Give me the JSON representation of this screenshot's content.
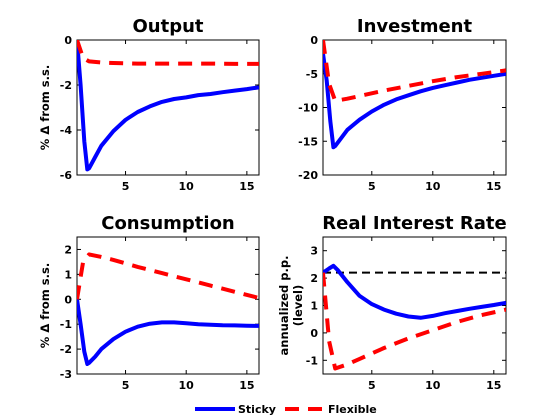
{
  "figure": {
    "legend": {
      "placement": "bottom-center",
      "entries": [
        {
          "name": "Sticky",
          "color": "#0000ff",
          "style": "solid"
        },
        {
          "name": "Flexible",
          "color": "#ff0000",
          "style": "dashed"
        }
      ]
    }
  },
  "chart_data": [
    {
      "type": "line",
      "title": "Output",
      "xlabel": "",
      "ylabel": "% Δ from s.s.",
      "xlim": [
        1,
        16
      ],
      "ylim": [
        -6,
        0
      ],
      "xticks": [
        5,
        10,
        15
      ],
      "yticks": [
        0,
        -2,
        -4,
        -6
      ],
      "grid": false,
      "series": [
        {
          "name": "Sticky",
          "color": "#0000ff",
          "style": "solid",
          "x": [
            1,
            1.3,
            1.6,
            1.85,
            2,
            2.5,
            3,
            4,
            5,
            6,
            7,
            8,
            9,
            10,
            11,
            12,
            13,
            14,
            15,
            16
          ],
          "y": [
            0,
            -2.0,
            -4.5,
            -5.75,
            -5.7,
            -5.2,
            -4.7,
            -4.05,
            -3.55,
            -3.2,
            -2.95,
            -2.75,
            -2.62,
            -2.55,
            -2.45,
            -2.4,
            -2.32,
            -2.25,
            -2.18,
            -2.1
          ]
        },
        {
          "name": "Flexible",
          "color": "#ff0000",
          "style": "dashed",
          "x": [
            1,
            1.5,
            2,
            3,
            4,
            6,
            8,
            10,
            12,
            14,
            16
          ],
          "y": [
            0,
            -0.8,
            -0.95,
            -1.0,
            -1.02,
            -1.05,
            -1.05,
            -1.05,
            -1.05,
            -1.06,
            -1.06
          ]
        }
      ]
    },
    {
      "type": "line",
      "title": "Investment",
      "xlabel": "",
      "ylabel": "",
      "xlim": [
        1,
        16
      ],
      "ylim": [
        -20,
        0
      ],
      "xticks": [
        5,
        10,
        15
      ],
      "yticks": [
        0,
        -5,
        -10,
        -15,
        -20
      ],
      "grid": false,
      "series": [
        {
          "name": "Sticky",
          "color": "#0000ff",
          "style": "solid",
          "x": [
            1,
            1.3,
            1.6,
            1.85,
            2,
            2.5,
            3,
            4,
            5,
            6,
            7,
            8,
            9,
            10,
            11,
            12,
            13,
            14,
            15,
            16
          ],
          "y": [
            -2,
            -6,
            -12,
            -15.9,
            -15.7,
            -14.5,
            -13.3,
            -11.8,
            -10.6,
            -9.6,
            -8.8,
            -8.2,
            -7.6,
            -7.1,
            -6.7,
            -6.3,
            -5.9,
            -5.6,
            -5.3,
            -5.0
          ]
        },
        {
          "name": "Flexible",
          "color": "#ff0000",
          "style": "dashed",
          "x": [
            1,
            1.5,
            2,
            3,
            4,
            6,
            8,
            10,
            12,
            14,
            16
          ],
          "y": [
            0,
            -6.5,
            -9.0,
            -8.7,
            -8.3,
            -7.5,
            -6.8,
            -6.1,
            -5.5,
            -5.0,
            -4.5
          ]
        }
      ]
    },
    {
      "type": "line",
      "title": "Consumption",
      "xlabel": "",
      "ylabel": "% Δ from s.s.",
      "xlim": [
        1,
        16
      ],
      "ylim": [
        -3,
        2.5
      ],
      "xticks": [
        5,
        10,
        15
      ],
      "yticks": [
        2,
        1,
        0,
        -1,
        -2,
        -3
      ],
      "grid": false,
      "series": [
        {
          "name": "Sticky",
          "color": "#0000ff",
          "style": "solid",
          "x": [
            1,
            1.3,
            1.6,
            1.85,
            2,
            2.5,
            3,
            4,
            5,
            6,
            7,
            8,
            9,
            10,
            11,
            12,
            13,
            14,
            15,
            16
          ],
          "y": [
            0,
            -1.0,
            -2.1,
            -2.6,
            -2.55,
            -2.3,
            -2.0,
            -1.6,
            -1.3,
            -1.1,
            -0.98,
            -0.93,
            -0.93,
            -0.96,
            -1.0,
            -1.02,
            -1.04,
            -1.05,
            -1.06,
            -1.07
          ]
        },
        {
          "name": "Flexible",
          "color": "#ff0000",
          "style": "dashed",
          "x": [
            1,
            1.5,
            2,
            3,
            4,
            6,
            8,
            10,
            12,
            14,
            16
          ],
          "y": [
            0,
            1.5,
            1.8,
            1.7,
            1.58,
            1.3,
            1.05,
            0.8,
            0.55,
            0.3,
            0.05
          ]
        }
      ]
    },
    {
      "type": "line",
      "title": "Real Interest Rate",
      "xlabel": "",
      "ylabel": "annualized p.p. (level)",
      "xlim": [
        1,
        16
      ],
      "ylim": [
        -1.5,
        3.5
      ],
      "xticks": [
        5,
        10,
        15
      ],
      "yticks": [
        3,
        2,
        1,
        0,
        -1
      ],
      "grid": false,
      "reference_line": {
        "y": 2.2,
        "color": "#000000",
        "style": "dashed"
      },
      "series": [
        {
          "name": "Sticky",
          "color": "#0000ff",
          "style": "solid",
          "x": [
            1,
            1.5,
            1.85,
            2.2,
            3,
            4,
            5,
            6,
            7,
            8,
            9,
            10,
            11,
            12,
            13,
            14,
            15,
            16
          ],
          "y": [
            2.2,
            2.35,
            2.45,
            2.3,
            1.85,
            1.35,
            1.05,
            0.85,
            0.7,
            0.6,
            0.55,
            0.62,
            0.72,
            0.8,
            0.88,
            0.95,
            1.02,
            1.1
          ]
        },
        {
          "name": "Flexible",
          "color": "#ff0000",
          "style": "dashed",
          "x": [
            1,
            1.5,
            2,
            3,
            4,
            6,
            8,
            10,
            12,
            14,
            16
          ],
          "y": [
            2.2,
            -0.3,
            -1.3,
            -1.15,
            -0.95,
            -0.55,
            -0.2,
            0.1,
            0.4,
            0.65,
            0.85
          ]
        }
      ]
    }
  ]
}
